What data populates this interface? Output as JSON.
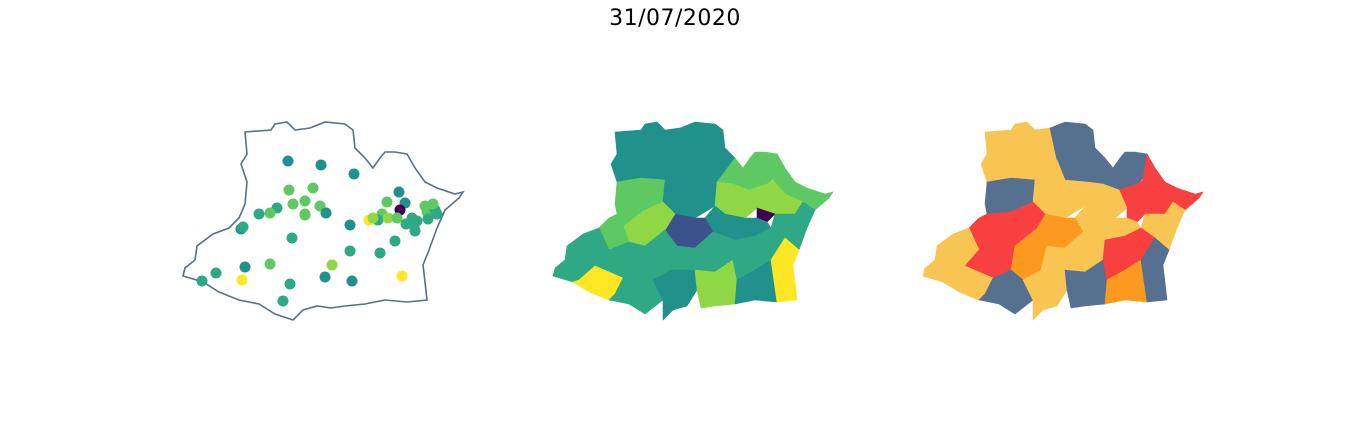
{
  "title": "31/07/2020",
  "colors": {
    "outline": "#5a6f88",
    "viridis": [
      "#440154",
      "#3b528b",
      "#21918c",
      "#2ea885",
      "#5ec962",
      "#8fd744",
      "#fde725"
    ],
    "categorical": {
      "low": "#56718f",
      "medium": "#f9c552",
      "high": "#fb9a1e",
      "very_high": "#f84040"
    }
  },
  "maps": [
    {
      "name": "points",
      "description_level": "city-markers"
    },
    {
      "name": "choropleth-continuous"
    },
    {
      "name": "choropleth-categorical"
    }
  ]
}
